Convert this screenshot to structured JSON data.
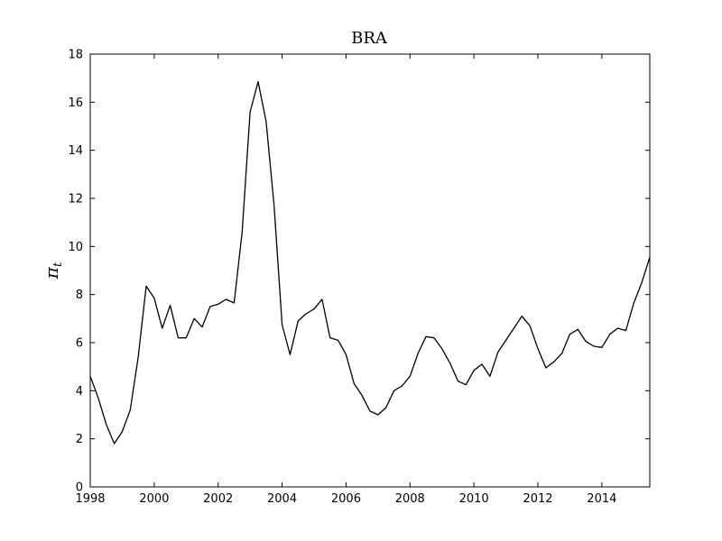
{
  "chart_data": {
    "type": "line",
    "title": "BRA",
    "xlabel": "",
    "ylabel": "π",
    "ylabel_subscript": "t",
    "xlim": [
      1998,
      2015.5
    ],
    "ylim": [
      0,
      18
    ],
    "xticks": [
      1998,
      2000,
      2002,
      2004,
      2006,
      2008,
      2010,
      2012,
      2014
    ],
    "xtick_labels": [
      "1998",
      "2000",
      "2002",
      "2004",
      "2006",
      "2008",
      "2010",
      "2012",
      "2014"
    ],
    "yticks": [
      0,
      2,
      4,
      6,
      8,
      10,
      12,
      14,
      16,
      18
    ],
    "ytick_labels": [
      "0",
      "2",
      "4",
      "6",
      "8",
      "10",
      "12",
      "14",
      "16",
      "18"
    ],
    "grid": false,
    "line_color": "#000000",
    "series": [
      {
        "x": [
          1998.0,
          1998.25,
          1998.5,
          1998.75,
          1999.0,
          1999.25,
          1999.5,
          1999.75,
          2000.0,
          2000.25,
          2000.5,
          2000.75,
          2001.0,
          2001.25,
          2001.5,
          2001.75,
          2002.0,
          2002.25,
          2002.5,
          2002.75,
          2003.0,
          2003.25,
          2003.5,
          2003.75,
          2004.0,
          2004.25,
          2004.5,
          2004.75,
          2005.0,
          2005.25,
          2005.5,
          2005.75,
          2006.0,
          2006.25,
          2006.5,
          2006.75,
          2007.0,
          2007.25,
          2007.5,
          2007.75,
          2008.0,
          2008.25,
          2008.5,
          2008.75,
          2009.0,
          2009.25,
          2009.5,
          2009.75,
          2010.0,
          2010.25,
          2010.5,
          2010.75,
          2011.0,
          2011.25,
          2011.5,
          2011.75,
          2012.0,
          2012.25,
          2012.5,
          2012.75,
          2013.0,
          2013.25,
          2013.5,
          2013.75,
          2014.0,
          2014.25,
          2014.5,
          2014.75,
          2015.0,
          2015.25,
          2015.5
        ],
        "values": [
          4.6,
          3.7,
          2.6,
          1.8,
          2.3,
          3.2,
          5.4,
          8.35,
          7.85,
          6.6,
          7.55,
          6.2,
          6.2,
          7.0,
          6.65,
          7.5,
          7.6,
          7.8,
          7.65,
          10.6,
          15.6,
          16.85,
          15.2,
          11.7,
          6.75,
          5.5,
          6.9,
          7.2,
          7.4,
          7.8,
          6.2,
          6.1,
          5.5,
          4.3,
          3.8,
          3.15,
          3.0,
          3.3,
          4.0,
          4.2,
          4.6,
          5.55,
          6.25,
          6.2,
          5.75,
          5.15,
          4.4,
          4.25,
          4.85,
          5.1,
          4.6,
          5.6,
          6.1,
          6.6,
          7.1,
          6.7,
          5.75,
          4.95,
          5.2,
          5.55,
          6.35,
          6.55,
          6.05,
          5.85,
          5.8,
          6.35,
          6.6,
          6.5,
          7.65,
          8.5,
          9.55
        ]
      }
    ]
  }
}
